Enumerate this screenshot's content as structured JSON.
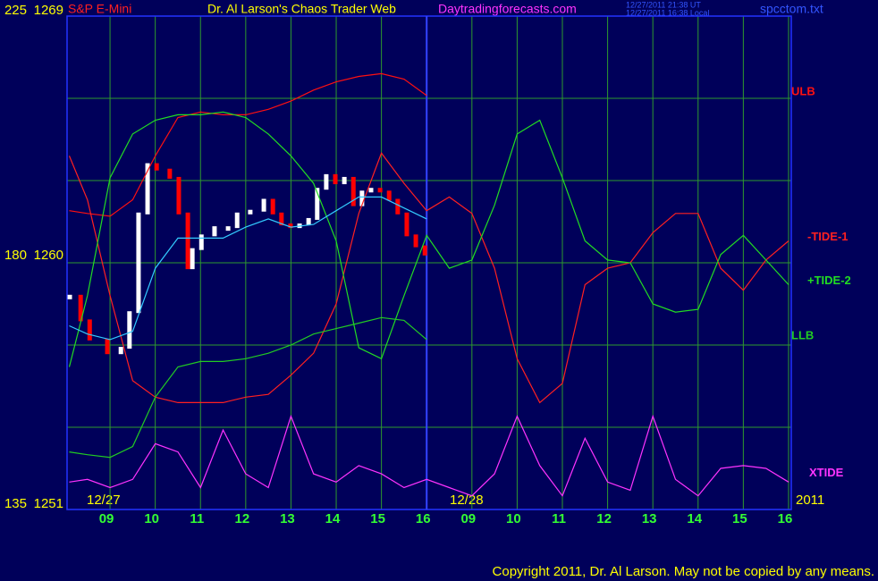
{
  "chart_data": {
    "type": "line",
    "instrument": "S&P E-Mini",
    "title": "Dr. Al Larson's Chaos Trader Web",
    "site": "Daytradingforecasts.com",
    "timestamps": [
      "12/27/2011 21:38 UT",
      "12/27/2011 16:38 Local"
    ],
    "file": "spcctom.txt",
    "copyright": "Copyright 2011, Dr. Al Larson. May not be copied by any means.",
    "date_labels": [
      "12/27",
      "12/28"
    ],
    "year": "2011",
    "xlim": [
      8.05,
      24.06
    ],
    "xticks": [
      {
        "value": 9,
        "label": "09"
      },
      10,
      11,
      12,
      13,
      14,
      15,
      16,
      {
        "value": 17,
        "label": "09"
      },
      {
        "value": 18,
        "label": "10"
      },
      {
        "value": 19,
        "label": "11"
      },
      {
        "value": 20,
        "label": "12"
      },
      {
        "value": 21,
        "label": "13"
      },
      {
        "value": 22,
        "label": "14"
      },
      {
        "value": 23,
        "label": "15"
      },
      {
        "value": 24,
        "label": "16"
      }
    ],
    "day_break": 16,
    "ylim": [
      1251,
      1269
    ],
    "yticks": [
      1251,
      1260,
      1269
    ],
    "ygrid": [
      1254,
      1257,
      1263,
      1266
    ],
    "y2lim": [
      135,
      225
    ],
    "y2ticks": [
      135,
      180,
      225
    ],
    "grid": true,
    "x": [
      8.1,
      8.5,
      9,
      9.5,
      10,
      10.5,
      11,
      11.5,
      12,
      12.5,
      13,
      13.5,
      14,
      14.5,
      15,
      15.5,
      16,
      16.5,
      17,
      17.5,
      18,
      18.5,
      19,
      19.5,
      20,
      20.5,
      21,
      21.5,
      22,
      22.5,
      23,
      23.5,
      24
    ],
    "series": [
      {
        "name": "ULB",
        "color": "#ff1010",
        "values": [
          1261.9,
          1261.8,
          1261.7,
          1262.3,
          1263.9,
          1265.3,
          1265.5,
          1265.4,
          1265.4,
          1265.6,
          1265.9,
          1266.3,
          1266.6,
          1266.8,
          1266.9,
          1266.7,
          1266.1,
          null,
          null,
          null,
          null,
          null,
          null,
          null,
          null,
          null,
          null,
          null,
          null,
          null,
          null,
          null,
          null
        ]
      },
      {
        "name": "-TIDE-1",
        "color": "#ff2020",
        "values": [
          1263.9,
          1262.3,
          1258.8,
          1255.7,
          1255.1,
          1254.9,
          1254.9,
          1254.9,
          1255.1,
          1255.2,
          1255.9,
          1256.7,
          1258.5,
          1261.8,
          1264.0,
          1262.9,
          1261.9,
          1262.4,
          1261.8,
          1259.8,
          1256.5,
          1254.9,
          1255.6,
          1259.2,
          1259.8,
          1260.0,
          1261.1,
          1261.8,
          1261.8,
          1259.8,
          1259.0,
          1260.1,
          1260.8
        ]
      },
      {
        "name": "+TIDE-2",
        "color": "#22dd22",
        "values": [
          1256.2,
          1258.8,
          1263.1,
          1264.7,
          1265.2,
          1265.4,
          1265.4,
          1265.5,
          1265.3,
          1264.7,
          1263.9,
          1262.9,
          1260.8,
          1256.9,
          1256.5,
          1258.8,
          1261.0,
          1259.8,
          1260.1,
          1262.1,
          1264.7,
          1265.2,
          1263.1,
          1260.8,
          1260.1,
          1260.0,
          1258.5,
          1258.2,
          1258.3,
          1260.3,
          1261.0,
          1260.1,
          1259.2
        ]
      },
      {
        "name": "LLB",
        "color": "#22cc22",
        "values": [
          1253.1,
          1253.0,
          1252.9,
          1253.3,
          1255.1,
          1256.2,
          1256.4,
          1256.4,
          1256.5,
          1256.7,
          1257.0,
          1257.4,
          1257.6,
          1257.8,
          1258.0,
          1257.9,
          1257.2,
          null,
          null,
          null,
          null,
          null,
          null,
          null,
          null,
          null,
          null,
          null,
          null,
          null,
          null,
          null,
          null
        ]
      },
      {
        "color": "#33ccff",
        "values": [
          1257.7,
          1257.4,
          1257.2,
          1257.5,
          1259.8,
          1260.9,
          1260.9,
          1260.9,
          1261.3,
          1261.6,
          1261.3,
          1261.4,
          1261.9,
          1262.4,
          1262.4,
          1262.0,
          1261.6,
          null,
          null,
          null,
          null,
          null,
          null,
          null,
          null,
          null,
          null,
          null,
          null,
          null,
          null,
          null,
          null
        ]
      },
      {
        "name": "XTIDE",
        "color": "#ff33ff",
        "values": [
          1252.0,
          1252.1,
          1251.8,
          1252.1,
          1253.4,
          1253.1,
          1251.8,
          1253.9,
          1252.3,
          1251.8,
          1254.4,
          1252.3,
          1252.0,
          1252.6,
          1252.3,
          1251.8,
          1252.1,
          1251.8,
          1251.5,
          1252.3,
          1254.4,
          1252.6,
          1251.5,
          1253.6,
          1252.0,
          1251.7,
          1254.4,
          1252.1,
          1251.5,
          1252.5,
          1252.6,
          1252.5,
          1252.0
        ]
      }
    ],
    "price_bars": {
      "up_color": "#ffffff",
      "down_color": "#ff0000",
      "x": [
        8.11,
        8.35,
        8.55,
        8.94,
        9.24,
        9.43,
        9.63,
        9.83,
        10.03,
        10.32,
        10.52,
        10.72,
        10.82,
        11.02,
        11.31,
        11.61,
        11.81,
        12.1,
        12.4,
        12.6,
        12.79,
        12.99,
        13.19,
        13.39,
        13.58,
        13.78,
        13.98,
        14.18,
        14.38,
        14.57,
        14.77,
        14.97,
        15.17,
        15.36,
        15.56,
        15.76,
        15.96
      ],
      "close": [
        1258.8,
        1257.9,
        1257.2,
        1256.7,
        1256.9,
        1258.2,
        1261.8,
        1263.6,
        1263.4,
        1263.1,
        1261.8,
        1259.8,
        1260.5,
        1261.0,
        1261.3,
        1261.3,
        1261.8,
        1261.9,
        1262.3,
        1261.8,
        1261.4,
        1261.3,
        1261.4,
        1261.6,
        1262.7,
        1263.2,
        1262.9,
        1263.1,
        1262.1,
        1262.6,
        1262.7,
        1262.6,
        1262.3,
        1261.8,
        1261.0,
        1260.6,
        1260.3
      ]
    }
  }
}
